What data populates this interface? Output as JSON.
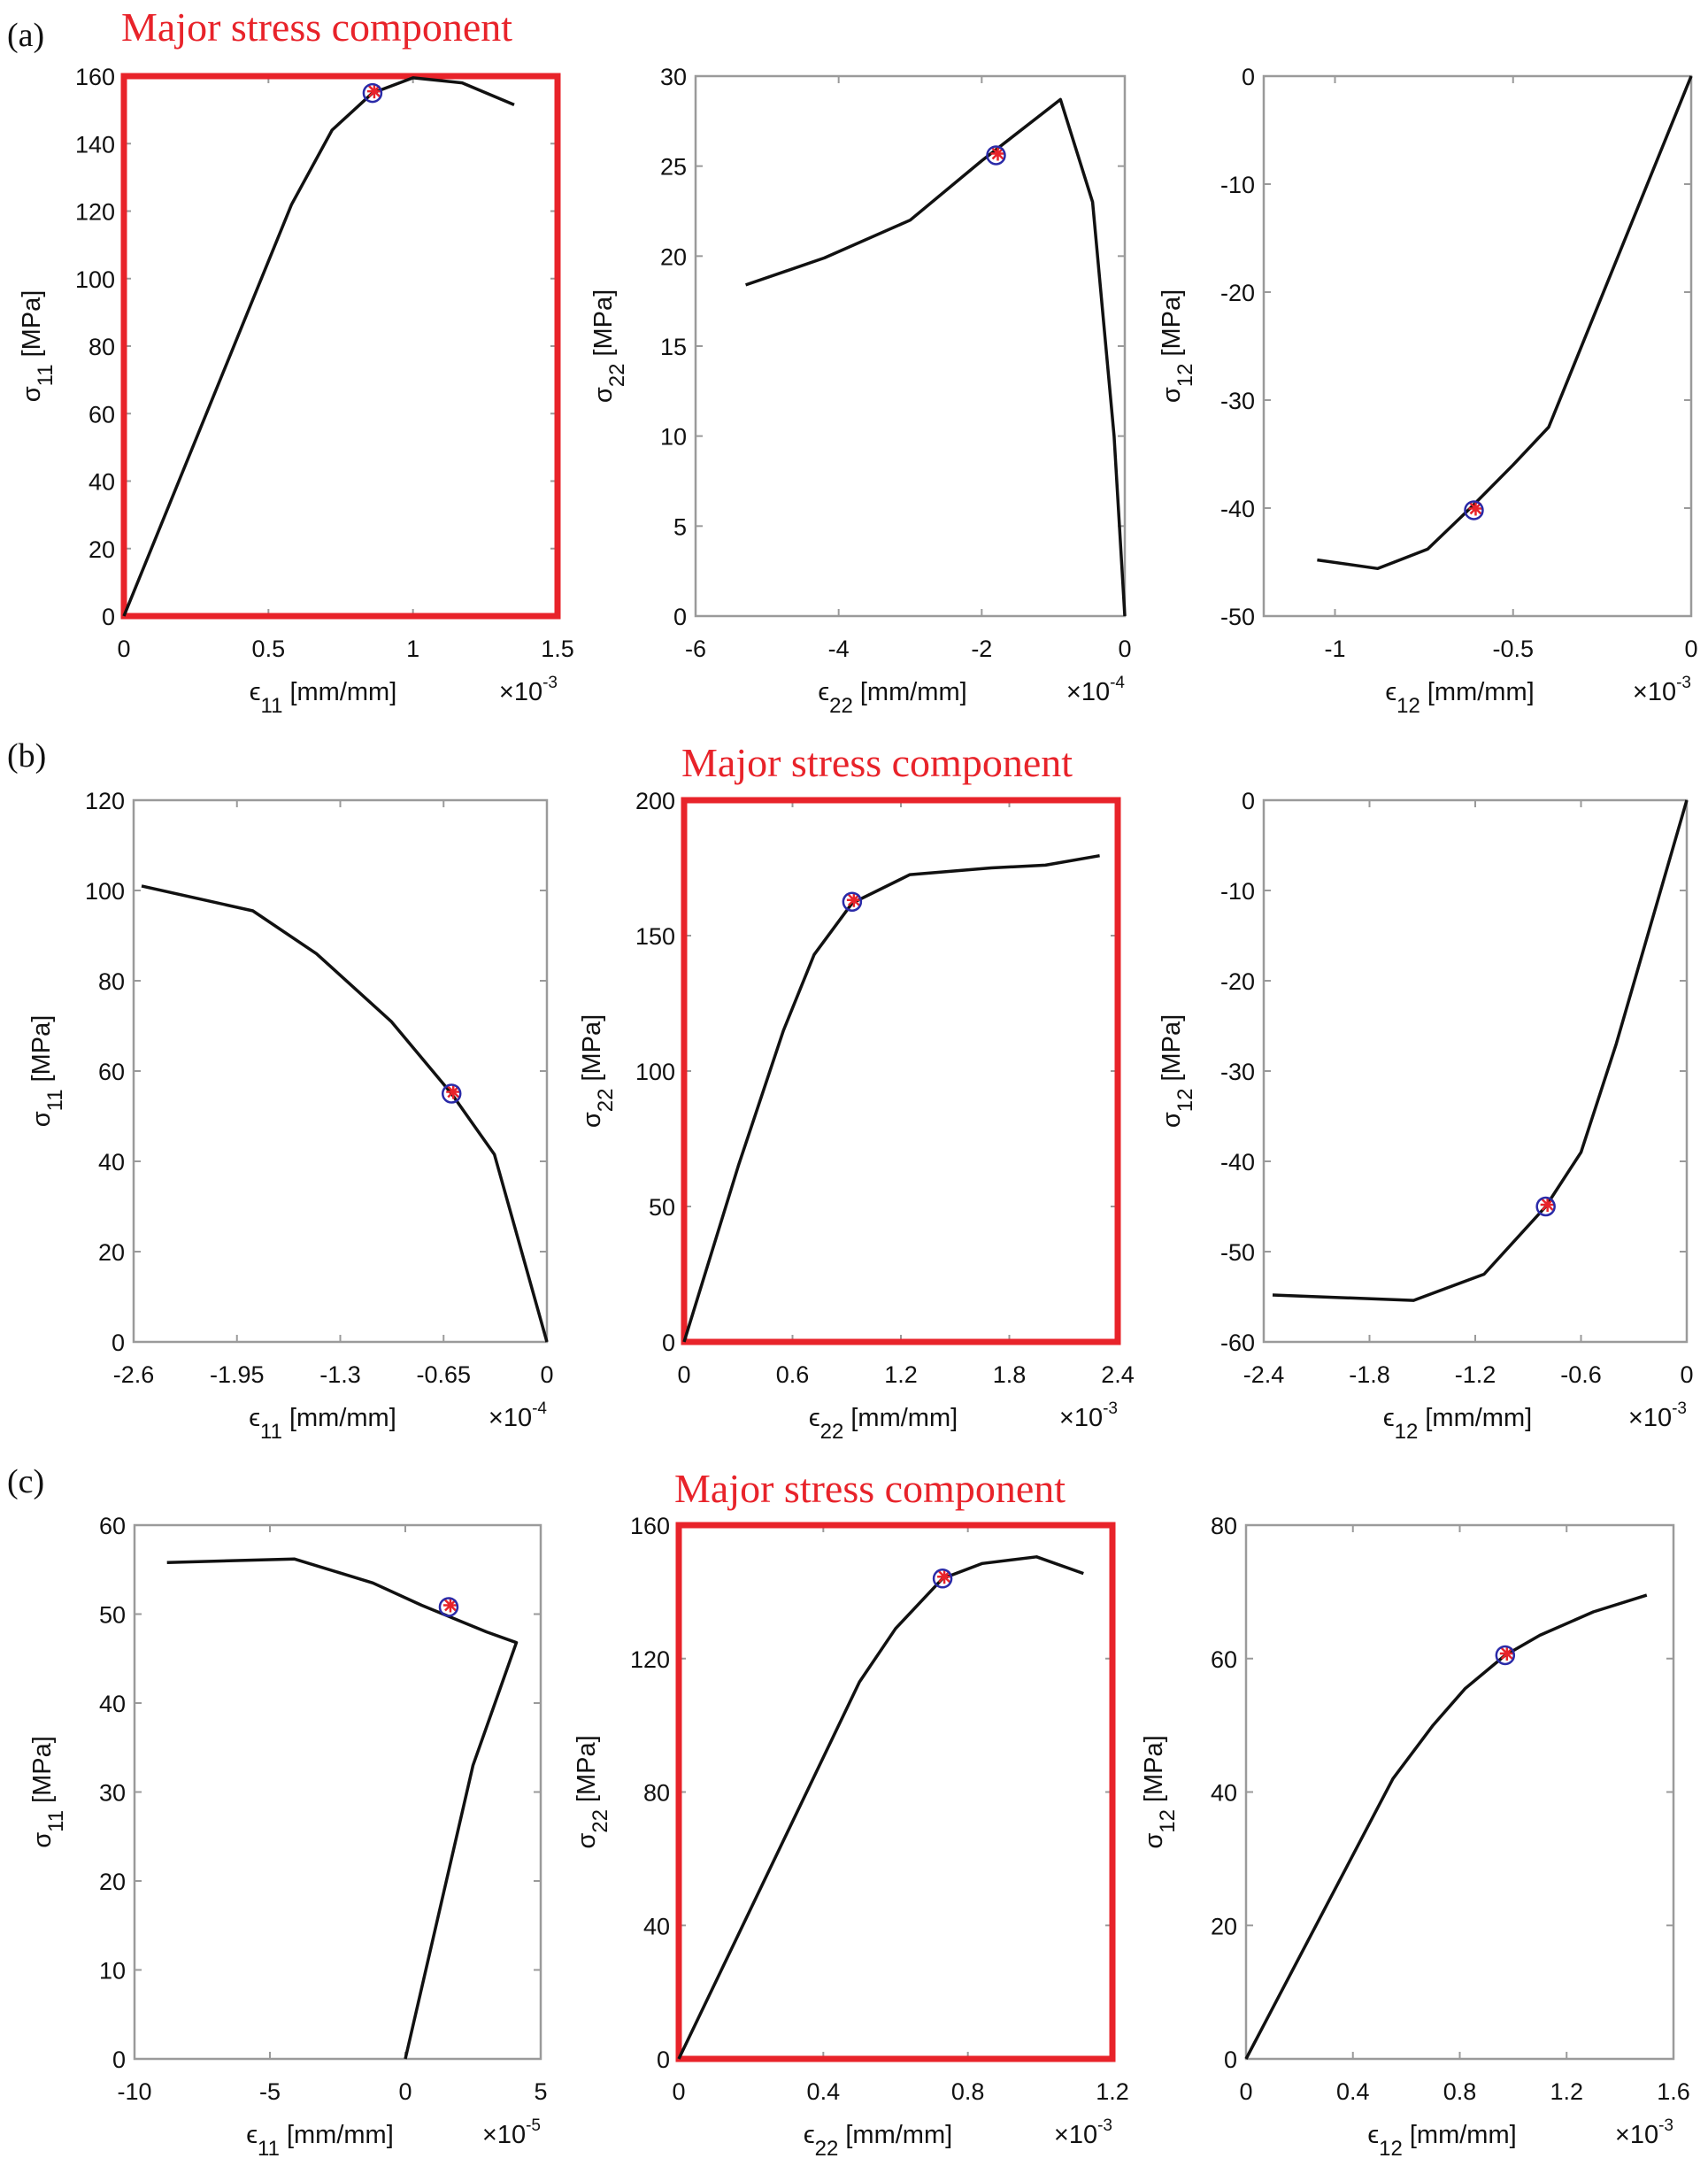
{
  "figure": {
    "panels": [
      "(a)",
      "(b)",
      "(c)"
    ],
    "highlight_title": "Major stress component",
    "colors": {
      "highlight": "#e8232a",
      "line": "#111111",
      "circle_marker": "#2a2aa8",
      "star_marker": "#e8232a",
      "axes": "#9a9a9a"
    }
  },
  "chart_data": [
    {
      "type": "line",
      "panel": "(a)",
      "highlighted": true,
      "ylabel": "σ",
      "ysub": "11",
      "yunit": "[MPa]",
      "xlabel": "ϵ",
      "xsub": "11",
      "xunit": "[mm/mm]",
      "xexp": "×10",
      "xexpsup": "-3",
      "xlim": [
        0,
        1.5
      ],
      "ylim": [
        0,
        160
      ],
      "xticks": [
        "0",
        "0.5",
        "1",
        "1.5"
      ],
      "xtickvals": [
        0,
        0.5,
        1,
        1.5
      ],
      "yticks": [
        "0",
        "20",
        "40",
        "60",
        "80",
        "100",
        "120",
        "140",
        "160"
      ],
      "ytickvals": [
        0,
        20,
        40,
        60,
        80,
        100,
        120,
        140,
        160
      ],
      "x": [
        0,
        0.58,
        0.72,
        0.86,
        1.0,
        1.17,
        1.35
      ],
      "y": [
        0,
        122,
        144,
        155,
        159.5,
        158,
        151.5
      ],
      "marker": [
        0.86,
        155
      ]
    },
    {
      "type": "line",
      "panel": "(a)",
      "highlighted": false,
      "ylabel": "σ",
      "ysub": "22",
      "yunit": "[MPa]",
      "xlabel": "ϵ",
      "xsub": "22",
      "xunit": "[mm/mm]",
      "xexp": "×10",
      "xexpsup": "-4",
      "xlim": [
        -6,
        0
      ],
      "ylim": [
        0,
        30
      ],
      "xticks": [
        "-6",
        "-4",
        "-2",
        "0"
      ],
      "xtickvals": [
        -6,
        -4,
        -2,
        0
      ],
      "yticks": [
        "0",
        "5",
        "10",
        "15",
        "20",
        "25",
        "30"
      ],
      "ytickvals": [
        0,
        5,
        10,
        15,
        20,
        25,
        30
      ],
      "x": [
        -5.3,
        -4.2,
        -3,
        -2,
        -0.9,
        -0.45,
        -0.15,
        0
      ],
      "y": [
        18.4,
        19.9,
        22,
        25.3,
        28.7,
        23,
        10,
        0
      ],
      "marker": [
        -1.8,
        25.6
      ]
    },
    {
      "type": "line",
      "panel": "(a)",
      "highlighted": false,
      "ylabel": "σ",
      "ysub": "12",
      "yunit": "[MPa]",
      "xlabel": "ϵ",
      "xsub": "12",
      "xunit": "[mm/mm]",
      "xexp": "×10",
      "xexpsup": "-3",
      "xlim": [
        -1.2,
        0
      ],
      "ylim": [
        -50,
        0
      ],
      "xticks": [
        "-1",
        "-0.5",
        "0"
      ],
      "xtickvals": [
        -1,
        -0.5,
        0
      ],
      "yticks": [
        "-50",
        "-40",
        "-30",
        "-20",
        "-10",
        "0"
      ],
      "ytickvals": [
        -50,
        -40,
        -30,
        -20,
        -10,
        0
      ],
      "x": [
        -1.05,
        -0.88,
        -0.74,
        -0.62,
        -0.5,
        -0.4,
        0
      ],
      "y": [
        -44.8,
        -45.6,
        -43.8,
        -40,
        -36,
        -32.5,
        0
      ],
      "marker": [
        -0.61,
        -40.2
      ]
    },
    {
      "type": "line",
      "panel": "(b)",
      "highlighted": false,
      "ylabel": "σ",
      "ysub": "11",
      "yunit": "[MPa]",
      "xlabel": "ϵ",
      "xsub": "11",
      "xunit": "[mm/mm]",
      "xexp": "×10",
      "xexpsup": "-4",
      "xlim": [
        -2.6,
        0
      ],
      "ylim": [
        0,
        120
      ],
      "xticks": [
        "-2.6",
        "-1.95",
        "-1.3",
        "-0.65",
        "0"
      ],
      "xtickvals": [
        -2.6,
        -1.95,
        -1.3,
        -0.65,
        0
      ],
      "yticks": [
        "0",
        "20",
        "40",
        "60",
        "80",
        "100",
        "120"
      ],
      "ytickvals": [
        0,
        20,
        40,
        60,
        80,
        100,
        120
      ],
      "x": [
        -2.55,
        -1.85,
        -1.45,
        -0.98,
        -0.6,
        -0.33,
        0
      ],
      "y": [
        101,
        95.5,
        86,
        71,
        55,
        41.5,
        0
      ],
      "marker": [
        -0.6,
        55
      ]
    },
    {
      "type": "line",
      "panel": "(b)",
      "highlighted": true,
      "ylabel": "σ",
      "ysub": "22",
      "yunit": "[MPa]",
      "xlabel": "ϵ",
      "xsub": "22",
      "xunit": "[mm/mm]",
      "xexp": "×10",
      "xexpsup": "-3",
      "xlim": [
        0,
        2.4
      ],
      "ylim": [
        0,
        200
      ],
      "xticks": [
        "0",
        "0.6",
        "1.2",
        "1.8",
        "2.4"
      ],
      "xtickvals": [
        0,
        0.6,
        1.2,
        1.8,
        2.4
      ],
      "yticks": [
        "0",
        "50",
        "100",
        "150",
        "200"
      ],
      "ytickvals": [
        0,
        50,
        100,
        150,
        200
      ],
      "x": [
        0,
        0.3,
        0.55,
        0.72,
        0.93,
        1.25,
        1.7,
        2.0,
        2.3
      ],
      "y": [
        0,
        65,
        115,
        143,
        162,
        172.5,
        175,
        176,
        179.5
      ],
      "marker": [
        0.93,
        162.5
      ]
    },
    {
      "type": "line",
      "panel": "(b)",
      "highlighted": false,
      "ylabel": "σ",
      "ysub": "12",
      "yunit": "[MPa]",
      "xlabel": "ϵ",
      "xsub": "12",
      "xunit": "[mm/mm]",
      "xexp": "×10",
      "xexpsup": "-3",
      "xlim": [
        -2.4,
        0
      ],
      "ylim": [
        -60,
        0
      ],
      "xticks": [
        "-2.4",
        "-1.8",
        "-1.2",
        "-0.6",
        "0"
      ],
      "xtickvals": [
        -2.4,
        -1.8,
        -1.2,
        -0.6,
        0
      ],
      "yticks": [
        "-60",
        "-50",
        "-40",
        "-30",
        "-20",
        "-10",
        "0"
      ],
      "ytickvals": [
        -60,
        -50,
        -40,
        -30,
        -20,
        -10,
        0
      ],
      "x": [
        -2.35,
        -1.55,
        -1.15,
        -0.8,
        -0.6,
        -0.4,
        0
      ],
      "y": [
        -54.8,
        -55.4,
        -52.5,
        -45,
        -39,
        -27,
        0
      ],
      "marker": [
        -0.8,
        -45
      ]
    },
    {
      "type": "line",
      "panel": "(c)",
      "highlighted": false,
      "ylabel": "σ",
      "ysub": "11",
      "yunit": "[MPa]",
      "xlabel": "ϵ",
      "xsub": "11",
      "xunit": "[mm/mm]",
      "xexp": "×10",
      "xexpsup": "-5",
      "xlim": [
        -10,
        5
      ],
      "ylim": [
        0,
        60
      ],
      "xticks": [
        "-10",
        "-5",
        "0",
        "5"
      ],
      "xtickvals": [
        -10,
        -5,
        0,
        5
      ],
      "yticks": [
        "0",
        "10",
        "20",
        "30",
        "40",
        "50",
        "60"
      ],
      "ytickvals": [
        0,
        10,
        20,
        30,
        40,
        50,
        60
      ],
      "x": [
        -8.8,
        -4.1,
        -1.2,
        0.6,
        3,
        4.1,
        2.5,
        0
      ],
      "y": [
        55.8,
        56.2,
        53.5,
        51,
        48,
        46.8,
        33,
        0
      ],
      "marker": [
        1.6,
        50.8
      ]
    },
    {
      "type": "line",
      "panel": "(c)",
      "highlighted": true,
      "ylabel": "σ",
      "ysub": "22",
      "yunit": "[MPa]",
      "xlabel": "ϵ",
      "xsub": "22",
      "xunit": "[mm/mm]",
      "xexp": "×10",
      "xexpsup": "-3",
      "xlim": [
        0,
        1.2
      ],
      "ylim": [
        0,
        160
      ],
      "xticks": [
        "0",
        "0.4",
        "0.8",
        "1.2"
      ],
      "xtickvals": [
        0,
        0.4,
        0.8,
        1.2
      ],
      "yticks": [
        "0",
        "40",
        "80",
        "120",
        "160"
      ],
      "ytickvals": [
        0,
        40,
        80,
        120,
        160
      ],
      "x": [
        0,
        0.5,
        0.6,
        0.73,
        0.84,
        0.99,
        1.12
      ],
      "y": [
        0,
        113,
        129,
        144,
        148.5,
        150.5,
        145.5
      ],
      "marker": [
        0.73,
        144
      ]
    },
    {
      "type": "line",
      "panel": "(c)",
      "highlighted": false,
      "ylabel": "σ",
      "ysub": "12",
      "yunit": "[MPa]",
      "xlabel": "ϵ",
      "xsub": "12",
      "xunit": "[mm/mm]",
      "xexp": "×10",
      "xexpsup": "-3",
      "xlim": [
        0,
        1.6
      ],
      "ylim": [
        0,
        80
      ],
      "xticks": [
        "0",
        "0.4",
        "0.8",
        "1.2",
        "1.6"
      ],
      "xtickvals": [
        0,
        0.4,
        0.8,
        1.2,
        1.6
      ],
      "yticks": [
        "0",
        "20",
        "40",
        "60",
        "80"
      ],
      "ytickvals": [
        0,
        20,
        40,
        60,
        80
      ],
      "x": [
        0,
        0.55,
        0.7,
        0.82,
        0.97,
        1.1,
        1.3,
        1.5
      ],
      "y": [
        0,
        42,
        50,
        55.5,
        60.5,
        63.5,
        67,
        69.5
      ],
      "marker": [
        0.97,
        60.5
      ]
    }
  ]
}
